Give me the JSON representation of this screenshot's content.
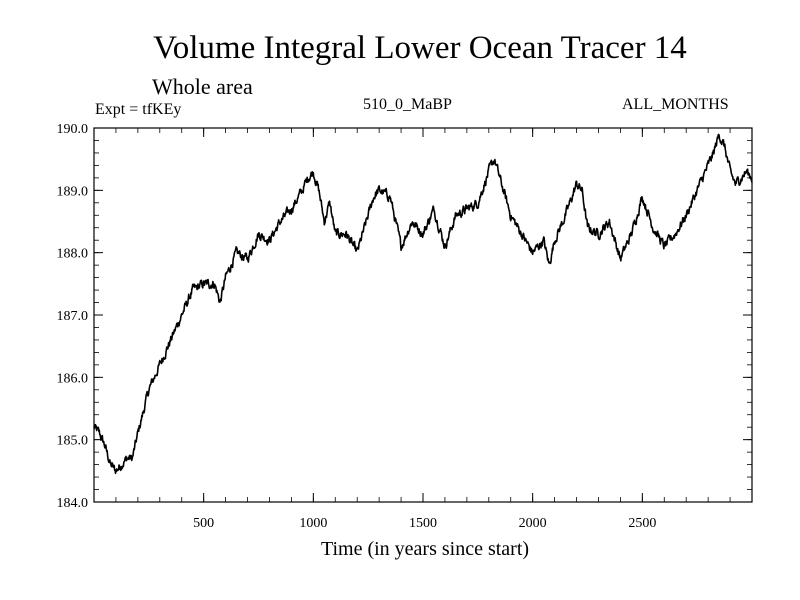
{
  "chart_data": {
    "type": "line",
    "title": "Volume Integral Lower Ocean Tracer 14",
    "subtitle": "Whole area",
    "expt_label": "Expt = tfKEy",
    "period_label": "510_0_MaBP",
    "months_label": "ALL_MONTHS",
    "xlabel": "Time (in years since start)",
    "ylabel": "",
    "xlim": [
      0,
      3000
    ],
    "ylim": [
      184.0,
      190.0
    ],
    "x_ticks": [
      500,
      1000,
      1500,
      2000,
      2500
    ],
    "x_tick_labels": [
      "500",
      "1000",
      "1500",
      "2000",
      "2500"
    ],
    "y_ticks": [
      184.0,
      185.0,
      186.0,
      187.0,
      188.0,
      189.0,
      190.0
    ],
    "y_tick_labels": [
      "184.0",
      "185.0",
      "186.0",
      "187.0",
      "188.0",
      "189.0",
      "190.0"
    ],
    "line_color": "#000000",
    "series": [
      {
        "x": [
          0,
          25,
          50,
          75,
          100,
          125,
          150,
          175,
          200,
          250,
          300,
          350,
          400,
          450,
          500,
          550,
          575,
          600,
          650,
          700,
          750,
          800,
          850,
          900,
          950,
          975,
          1000,
          1025,
          1050,
          1075,
          1100,
          1150,
          1200,
          1250,
          1275,
          1300,
          1350,
          1400,
          1450,
          1500,
          1550,
          1600,
          1650,
          1700,
          1750,
          1800,
          1825,
          1850,
          1900,
          1950,
          2000,
          2050,
          2075,
          2100,
          2150,
          2200,
          2225,
          2250,
          2300,
          2350,
          2400,
          2450,
          2500,
          2550,
          2600,
          2650,
          2700,
          2750,
          2800,
          2825,
          2850,
          2875,
          2900,
          2925,
          2950,
          2975,
          3000
        ],
        "y": [
          185.2,
          185.1,
          184.9,
          184.6,
          184.5,
          184.6,
          184.7,
          184.7,
          185.1,
          185.8,
          186.2,
          186.6,
          187.0,
          187.4,
          187.5,
          187.5,
          187.2,
          187.6,
          188.0,
          187.9,
          188.3,
          188.2,
          188.5,
          188.7,
          189.0,
          189.2,
          189.3,
          189.0,
          188.5,
          188.8,
          188.3,
          188.3,
          188.0,
          188.6,
          188.9,
          189.0,
          188.9,
          188.1,
          188.5,
          188.3,
          188.7,
          188.1,
          188.6,
          188.7,
          188.8,
          189.3,
          189.5,
          189.2,
          188.6,
          188.3,
          188.0,
          188.2,
          187.8,
          188.2,
          188.6,
          189.1,
          189.0,
          188.4,
          188.3,
          188.5,
          187.9,
          188.3,
          188.9,
          188.4,
          188.1,
          188.3,
          188.6,
          189.0,
          189.4,
          189.6,
          189.9,
          189.7,
          189.3,
          189.1,
          189.2,
          189.3,
          189.2
        ]
      }
    ]
  }
}
